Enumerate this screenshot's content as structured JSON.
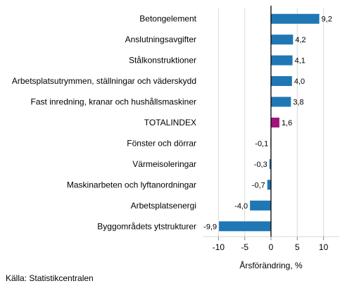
{
  "chart_data": {
    "type": "bar",
    "orientation": "horizontal",
    "categories": [
      "Betongelement",
      "Anslutningsavgifter",
      "Stålkonstruktioner",
      "Arbetsplatsutrymmen, ställningar och väderskydd",
      "Fast inredning, kranar och hushållsmaskiner",
      "TOTALINDEX",
      "Fönster och dörrar",
      "Värmeisoleringar",
      "Maskinarbeten och lyftanordningar",
      "Arbetsplatsenergi",
      "Byggområdets ytstrukturer"
    ],
    "values": [
      9.2,
      4.2,
      4.1,
      4.0,
      3.8,
      1.6,
      -0.1,
      -0.3,
      -0.7,
      -4.0,
      -9.9
    ],
    "value_labels": [
      "9,2",
      "4,2",
      "4,1",
      "4,0",
      "3,8",
      "1,6",
      "-0,1",
      "-0,3",
      "-0,7",
      "-4,0",
      "-9,9"
    ],
    "highlight_category": "TOTALINDEX",
    "xlabel": "Årsförändring, %",
    "xlim": [
      -13,
      13
    ],
    "xticks": [
      -10,
      -5,
      0,
      5,
      10
    ],
    "xtick_labels": [
      "-10",
      "-5",
      "0",
      "5",
      "10"
    ],
    "grid": "vertical",
    "colors": {
      "bar": "#1f77b4",
      "highlight": "#a0147d",
      "grid": "#d9d9d9",
      "axis": "#000000"
    }
  },
  "source": "Källa: Statistikcentralen"
}
